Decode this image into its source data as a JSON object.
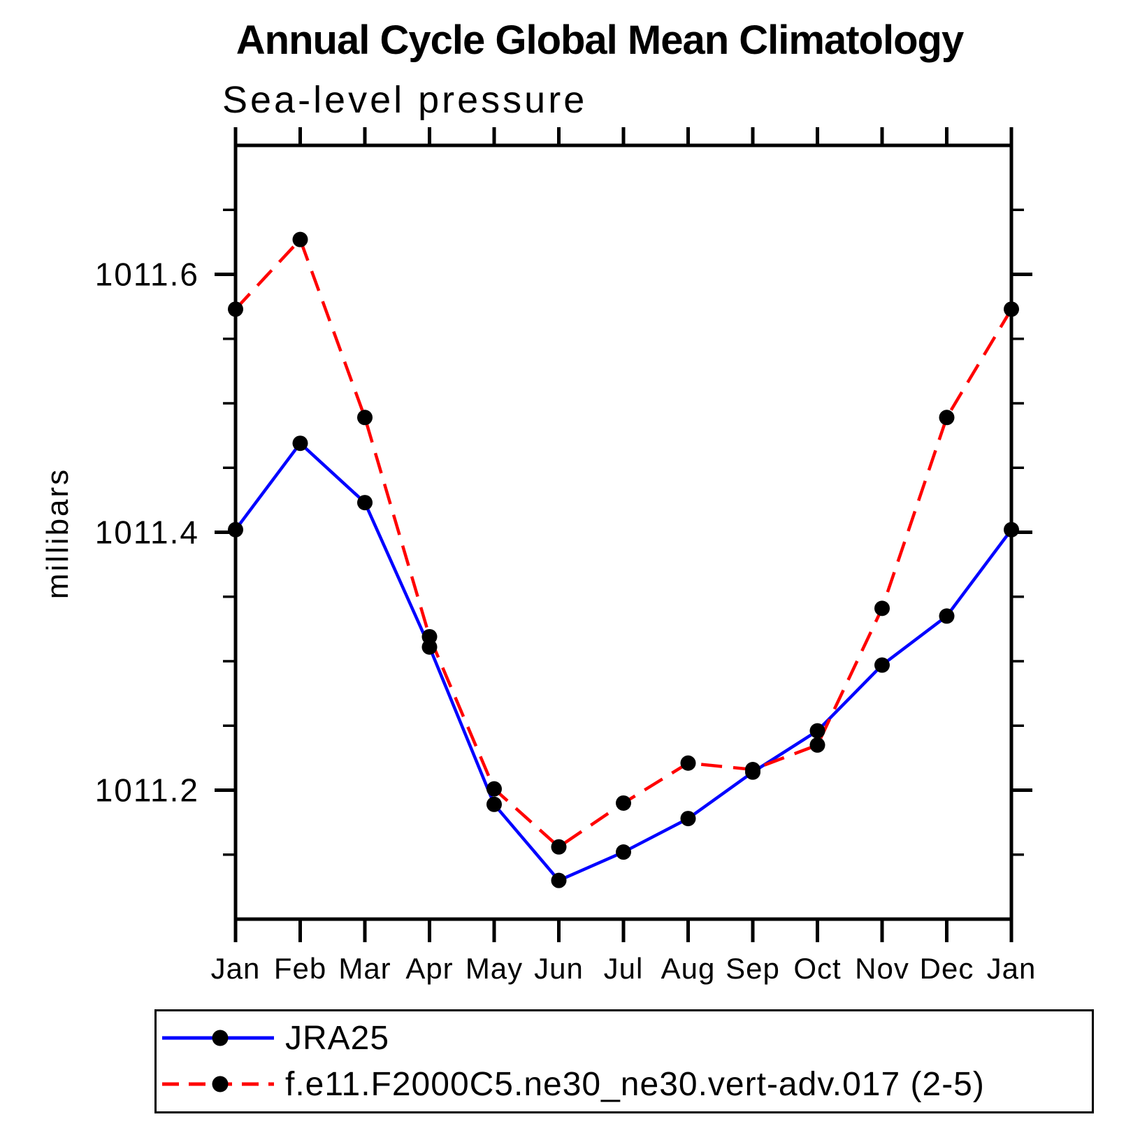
{
  "header": {
    "title": "Annual Cycle Global Mean Climatology",
    "subtitle": "Sea-level pressure"
  },
  "chart_data": {
    "type": "line",
    "title": "Annual Cycle Global Mean Climatology",
    "subtitle": "Sea-level pressure",
    "xlabel": "",
    "ylabel": "millibars",
    "categories": [
      "Jan",
      "Feb",
      "Mar",
      "Apr",
      "May",
      "Jun",
      "Jul",
      "Aug",
      "Sep",
      "Oct",
      "Nov",
      "Dec",
      "Jan"
    ],
    "ylim": [
      1011.1,
      1011.7
    ],
    "yticks_major": [
      1011.2,
      1011.4,
      1011.6
    ],
    "ytick_minor_step": 0.05,
    "grid": false,
    "legend_position": "bottom",
    "axis_color": "#000000",
    "series": [
      {
        "name": "JRA25",
        "color": "#0000ff",
        "style": "solid",
        "marker": "circle",
        "marker_color": "#000000",
        "values": [
          1011.402,
          1011.469,
          1011.423,
          1011.311,
          1011.189,
          1011.13,
          1011.152,
          1011.178,
          1011.214,
          1011.246,
          1011.297,
          1011.335,
          1011.402
        ]
      },
      {
        "name": "f.e11.F2000C5.ne30_ne30.vert-adv.017 (2-5)",
        "color": "#ff0000",
        "style": "dashed",
        "marker": "circle",
        "marker_color": "#000000",
        "values": [
          1011.573,
          1011.627,
          1011.489,
          1011.319,
          1011.201,
          1011.156,
          1011.19,
          1011.221,
          1011.216,
          1011.235,
          1011.341,
          1011.489,
          1011.573
        ]
      }
    ]
  }
}
